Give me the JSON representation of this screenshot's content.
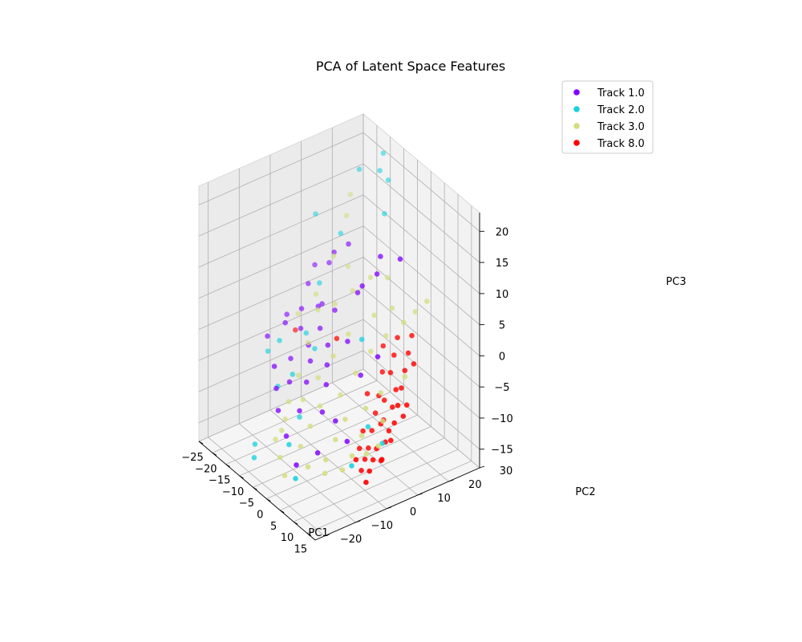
{
  "chart_data": {
    "type": "scatter",
    "projection": "3d",
    "title": "PCA of Latent Space Features",
    "xlabel": "PC1",
    "ylabel": "PC2",
    "zlabel": "PC3",
    "xlim": [
      -25,
      18
    ],
    "ylim": [
      -23,
      30
    ],
    "zlim": [
      -18,
      23
    ],
    "x_ticks": [
      "−25",
      "−20",
      "−15",
      "−10",
      "−5",
      "0",
      "5",
      "10",
      "15"
    ],
    "y_ticks": [
      "−20",
      "−10",
      "0",
      "10",
      "20",
      "30"
    ],
    "z_ticks": [
      "−15",
      "−10",
      "−5",
      "0",
      "5",
      "10",
      "15",
      "20"
    ],
    "grid": true,
    "legend_position": "top-right",
    "series": [
      {
        "name": "Track 1.0",
        "color": "#8000ff",
        "points": [
          [
            -20,
            10,
            5
          ],
          [
            -19,
            7,
            3
          ],
          [
            -18,
            4,
            0
          ],
          [
            -17,
            12,
            6
          ],
          [
            -16,
            2,
            -2
          ],
          [
            -15,
            8,
            1
          ],
          [
            -14,
            -3,
            -5
          ],
          [
            -13,
            5,
            2
          ],
          [
            -12,
            1,
            -3
          ],
          [
            -11,
            -6,
            -7
          ],
          [
            -10,
            3,
            0
          ],
          [
            -9,
            -1,
            -4
          ],
          [
            -8,
            6,
            3
          ],
          [
            -7,
            -4,
            -6
          ],
          [
            -6,
            2,
            -1
          ],
          [
            -5,
            -8,
            -9
          ],
          [
            -4,
            0,
            -3
          ],
          [
            -3,
            9,
            7
          ],
          [
            -2,
            -2,
            -5
          ],
          [
            -1,
            4,
            1
          ],
          [
            0,
            -5,
            -8
          ],
          [
            1,
            7,
            10
          ],
          [
            2,
            12,
            14
          ],
          [
            3,
            10,
            12
          ],
          [
            4,
            -10,
            -12
          ],
          [
            5,
            3,
            -2
          ],
          [
            6,
            -6,
            -7
          ],
          [
            7,
            14,
            15
          ],
          [
            -18,
            -7,
            -2
          ],
          [
            -16,
            -3,
            0
          ],
          [
            -12,
            -10,
            -4
          ],
          [
            -9,
            -12,
            -6
          ],
          [
            -6,
            -14,
            -8
          ],
          [
            8,
            -4,
            -10
          ],
          [
            9,
            5,
            2
          ],
          [
            -14,
            11,
            9
          ],
          [
            -11,
            13,
            11
          ],
          [
            -20,
            1,
            -1
          ],
          [
            -3,
            -14,
            -11
          ],
          [
            3,
            -16,
            -13
          ]
        ]
      },
      {
        "name": "Track 2.0",
        "color": "#1ad1e0",
        "points": [
          [
            -22,
            12,
            12
          ],
          [
            -15,
            20,
            20
          ],
          [
            -13,
            26,
            22
          ],
          [
            -12,
            24,
            20
          ],
          [
            -10,
            25,
            19
          ],
          [
            -8,
            22,
            15
          ],
          [
            -16,
            8,
            4
          ],
          [
            -14,
            2,
            -2
          ],
          [
            -12,
            3,
            -4
          ],
          [
            -13,
            -8,
            -8
          ],
          [
            -11,
            -5,
            -6
          ],
          [
            -17,
            -4,
            -3
          ],
          [
            -5,
            -8,
            -10
          ],
          [
            -2,
            -14,
            -12
          ],
          [
            2,
            6,
            2
          ],
          [
            10,
            1,
            -8
          ],
          [
            12,
            -6,
            -12
          ],
          [
            13,
            3,
            -10
          ],
          [
            -19,
            -6,
            -5
          ],
          [
            -10,
            -18,
            -14
          ],
          [
            -8,
            -20,
            -15
          ],
          [
            5,
            -18,
            -14
          ],
          [
            -15,
            14,
            11
          ]
        ]
      },
      {
        "name": "Track 3.0",
        "color": "#d4dd80",
        "points": [
          [
            -16,
            18,
            16
          ],
          [
            -14,
            15,
            14
          ],
          [
            -13,
            10,
            9
          ],
          [
            -12,
            4,
            2
          ],
          [
            -11,
            0,
            -2
          ],
          [
            -10,
            -4,
            -6
          ],
          [
            -9,
            -8,
            -9
          ],
          [
            -8,
            -10,
            -11
          ],
          [
            -7,
            -12,
            -12
          ],
          [
            -6,
            -6,
            -8
          ],
          [
            -5,
            -2,
            -5
          ],
          [
            -4,
            2,
            -2
          ],
          [
            -3,
            6,
            1
          ],
          [
            -2,
            -4,
            -8
          ],
          [
            -1,
            -8,
            -10
          ],
          [
            0,
            -12,
            -12
          ],
          [
            1,
            0,
            -6
          ],
          [
            2,
            4,
            -3
          ],
          [
            3,
            8,
            0
          ],
          [
            4,
            12,
            2
          ],
          [
            5,
            -2,
            -8
          ],
          [
            6,
            -6,
            -10
          ],
          [
            7,
            -10,
            -12
          ],
          [
            8,
            2,
            -6
          ],
          [
            9,
            6,
            -4
          ],
          [
            10,
            -1,
            -9
          ],
          [
            11,
            -5,
            -11
          ],
          [
            12,
            4,
            -7
          ],
          [
            13,
            8,
            -5
          ],
          [
            14,
            -3,
            -10
          ],
          [
            6,
            16,
            4
          ],
          [
            8,
            18,
            6
          ],
          [
            10,
            20,
            8
          ],
          [
            4,
            14,
            6
          ],
          [
            2,
            10,
            5
          ],
          [
            -4,
            14,
            8
          ],
          [
            -6,
            10,
            6
          ],
          [
            -8,
            6,
            4
          ],
          [
            -10,
            12,
            8
          ],
          [
            0,
            16,
            9
          ],
          [
            -15,
            6,
            3
          ],
          [
            -17,
            2,
            0
          ],
          [
            -7,
            -14,
            -13
          ],
          [
            -3,
            -16,
            -14
          ],
          [
            1,
            -18,
            -15
          ],
          [
            5,
            -14,
            -13
          ],
          [
            9,
            -12,
            -13
          ],
          [
            12,
            -9,
            -12
          ],
          [
            15,
            0,
            -9
          ],
          [
            11,
            12,
            -2
          ]
        ]
      },
      {
        "name": "Track 8.0",
        "color": "#ff0000",
        "points": [
          [
            6,
            14,
            2
          ],
          [
            7,
            12,
            0
          ],
          [
            8,
            10,
            -2
          ],
          [
            9,
            16,
            3
          ],
          [
            10,
            14,
            1
          ],
          [
            11,
            12,
            -1
          ],
          [
            12,
            10,
            -3
          ],
          [
            13,
            8,
            -5
          ],
          [
            14,
            6,
            -7
          ],
          [
            15,
            4,
            -9
          ],
          [
            6,
            8,
            -6
          ],
          [
            7,
            6,
            -8
          ],
          [
            8,
            4,
            -10
          ],
          [
            9,
            2,
            -12
          ],
          [
            10,
            0,
            -13
          ],
          [
            11,
            -2,
            -14
          ],
          [
            12,
            2,
            -11
          ],
          [
            13,
            0,
            -12
          ],
          [
            14,
            -2,
            -13
          ],
          [
            15,
            -4,
            -14
          ],
          [
            7,
            2,
            -10
          ],
          [
            8,
            0,
            -12
          ],
          [
            9,
            -2,
            -13
          ],
          [
            10,
            6,
            -8
          ],
          [
            11,
            8,
            -6
          ],
          [
            12,
            6,
            -9
          ],
          [
            13,
            4,
            -10
          ],
          [
            14,
            2,
            -12
          ],
          [
            5,
            10,
            -3
          ],
          [
            4,
            6,
            -6
          ],
          [
            16,
            0,
            -11
          ],
          [
            15,
            8,
            -6
          ],
          [
            -5,
            4,
            0
          ],
          [
            -18,
            2,
            -3
          ],
          [
            3,
            12,
            0
          ],
          [
            12,
            14,
            0
          ],
          [
            10,
            10,
            -4
          ],
          [
            8,
            8,
            -6
          ],
          [
            14,
            10,
            -5
          ],
          [
            9,
            6,
            -9
          ]
        ]
      }
    ]
  }
}
